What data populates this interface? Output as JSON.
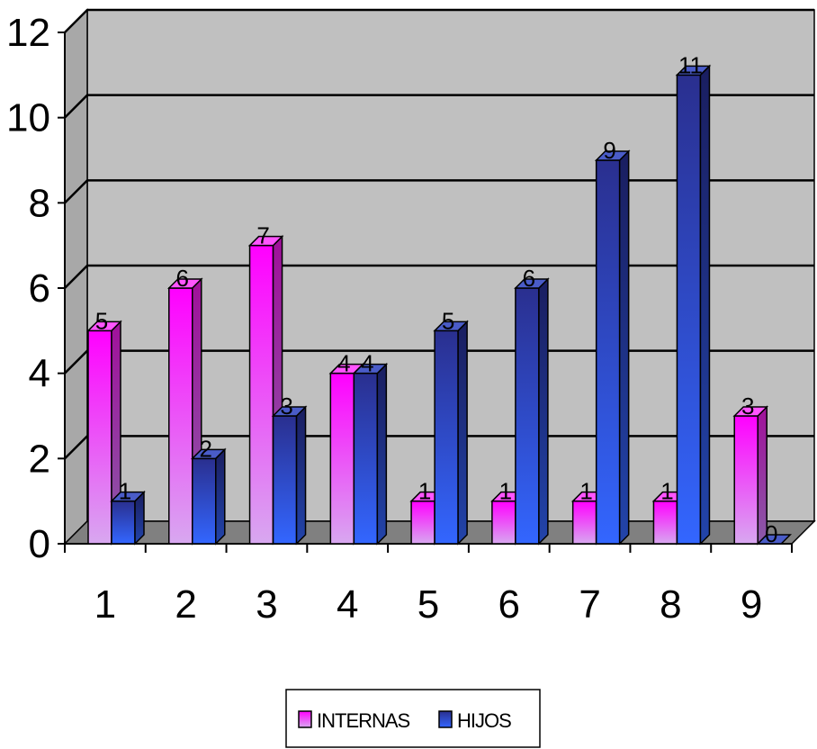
{
  "chart_data": {
    "type": "bar",
    "categories": [
      "1",
      "2",
      "3",
      "4",
      "5",
      "6",
      "7",
      "8",
      "9"
    ],
    "series": [
      {
        "name": "INTERNAS",
        "values": [
          5,
          6,
          7,
          4,
          1,
          1,
          1,
          1,
          3
        ],
        "color": "#ff00ff"
      },
      {
        "name": "HIJOS",
        "values": [
          1,
          2,
          3,
          4,
          5,
          6,
          9,
          11,
          0
        ],
        "color": "#3366ff"
      }
    ],
    "yticks": [
      "0",
      "2",
      "4",
      "6",
      "8",
      "10",
      "12"
    ],
    "ylim": [
      0,
      12
    ],
    "grid": true,
    "legend": "bottom",
    "data_labels": true,
    "plot_background": "#c0c0c0",
    "floor_color": "#808080"
  }
}
